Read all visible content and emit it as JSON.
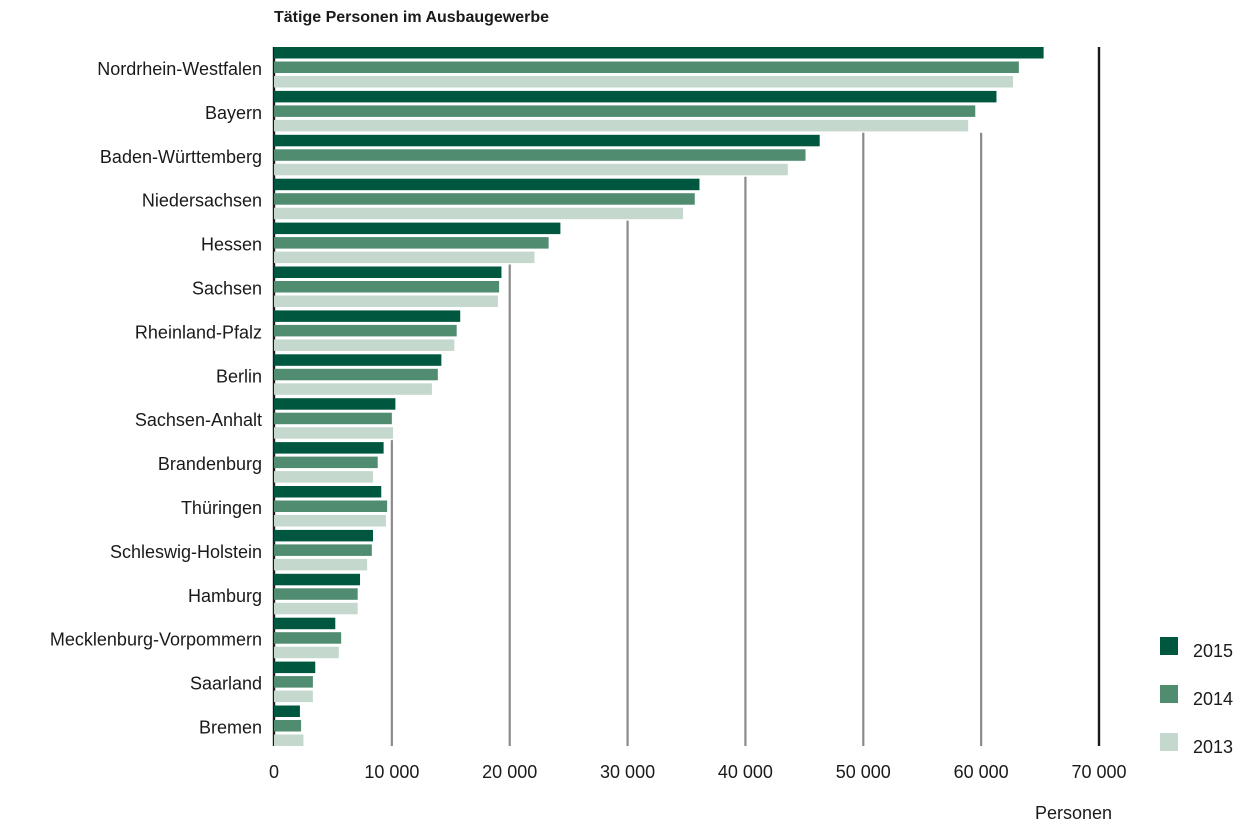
{
  "chart_data": {
    "type": "bar",
    "orientation": "horizontal",
    "title": "Tätige Personen im Ausbaugewerbe",
    "xlabel": "Personen",
    "ylabel": "",
    "xlim": [
      0,
      70000
    ],
    "xticks": [
      0,
      10000,
      20000,
      30000,
      40000,
      50000,
      60000,
      70000
    ],
    "xtick_labels": [
      "0",
      "10 000",
      "20 000",
      "30 000",
      "40 000",
      "50 000",
      "60 000",
      "70 000"
    ],
    "grid": true,
    "legend_position": "bottom-right",
    "categories": [
      "Nordrhein-Westfalen",
      "Bayern",
      "Baden-Württemberg",
      "Niedersachsen",
      "Hessen",
      "Sachsen",
      "Rheinland-Pfalz",
      "Berlin",
      "Sachsen-Anhalt",
      "Brandenburg",
      "Thüringen",
      "Schleswig-Holstein",
      "Hamburg",
      "Mecklenburg-Vorpommern",
      "Saarland",
      "Bremen"
    ],
    "series": [
      {
        "name": "2015",
        "color": "#00573f",
        "values": [
          65300,
          61300,
          46300,
          36100,
          24300,
          19300,
          15800,
          14200,
          10300,
          9300,
          9100,
          8400,
          7300,
          5200,
          3500,
          2200
        ]
      },
      {
        "name": "2014",
        "color": "#4f8c70",
        "values": [
          63200,
          59500,
          45100,
          35700,
          23300,
          19100,
          15500,
          13900,
          10000,
          8800,
          9600,
          8300,
          7100,
          5700,
          3300,
          2300
        ]
      },
      {
        "name": "2013",
        "color": "#c4d8ce",
        "values": [
          62700,
          58900,
          43600,
          34700,
          22100,
          19000,
          15300,
          13400,
          10100,
          8400,
          9500,
          7900,
          7100,
          5500,
          3300,
          2500
        ]
      }
    ]
  }
}
